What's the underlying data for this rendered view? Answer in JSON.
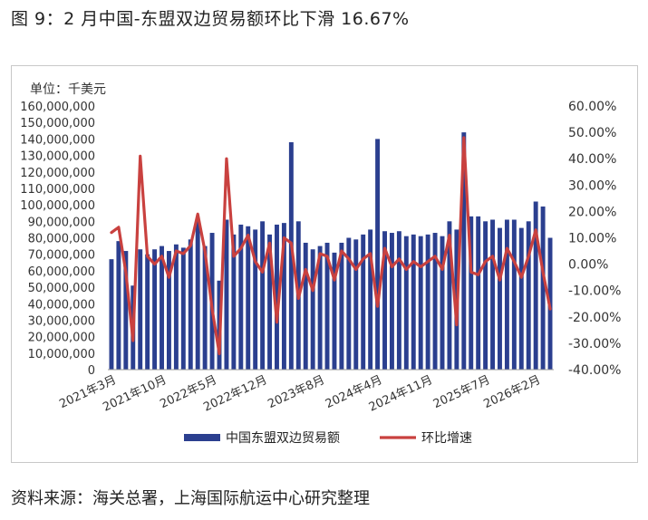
{
  "figure_title": "图 9：2 月中国-东盟双边贸易额环比下滑 16.67%",
  "unit_label": "单位：千美元",
  "source": "资料来源：海关总署，上海国际航运中心研究整理",
  "chart_data": {
    "type": "bar+line",
    "y_left_ticks": [
      "160,000,000",
      "150,000,000",
      "140,000,000",
      "130,000,000",
      "120,000,000",
      "110,000,000",
      "100,000,000",
      "90,000,000",
      "80,000,000",
      "70,000,000",
      "60,000,000",
      "50,000,000",
      "40,000,000",
      "30,000,000",
      "20,000,000",
      "10,000,000",
      "0"
    ],
    "y_right_ticks": [
      "60.00%",
      "50.00%",
      "40.00%",
      "30.00%",
      "20.00%",
      "10.00%",
      "0.00%",
      "-10.00%",
      "-20.00%",
      "-30.00%",
      "-40.00%"
    ],
    "ylim_left": [
      0,
      160000000
    ],
    "ylim_right": [
      -40,
      60
    ],
    "x_tick_labels": [
      "2021年3月",
      "2021年10月",
      "2022年5月",
      "2022年12月",
      "2023年8月",
      "2024年4月",
      "2024年11月",
      "2025年7月",
      "2026年2月"
    ],
    "x_tick_index": [
      0,
      7,
      14,
      21,
      29,
      37,
      44,
      52,
      59
    ],
    "categories_start": "2021年3月",
    "categories_end": "2026年2月",
    "colors": {
      "bars": "#2b3f8f",
      "line": "#c9413f"
    },
    "series": [
      {
        "name": "中国东盟双边贸易额",
        "kind": "bar",
        "values": [
          67000000,
          78000000,
          72000000,
          51000000,
          73000000,
          70000000,
          73000000,
          75000000,
          72000000,
          76000000,
          74000000,
          79000000,
          90000000,
          75000000,
          83000000,
          54000000,
          91000000,
          82000000,
          88000000,
          87000000,
          85000000,
          90000000,
          82000000,
          88000000,
          89000000,
          138000000,
          90000000,
          77000000,
          73000000,
          75000000,
          77000000,
          71000000,
          77000000,
          80000000,
          79000000,
          82000000,
          85000000,
          140000000,
          84000000,
          83000000,
          84000000,
          81000000,
          82000000,
          81000000,
          82000000,
          83000000,
          81000000,
          90000000,
          85000000,
          144000000,
          93000000,
          93000000,
          90000000,
          91000000,
          86000000,
          91000000,
          91000000,
          86000000,
          90000000,
          102000000,
          99000000,
          80000000
        ]
      },
      {
        "name": "环比增速",
        "kind": "line",
        "values": [
          12,
          14,
          -3,
          -29,
          41,
          3,
          0,
          3,
          -5,
          5,
          4,
          7,
          19,
          5,
          -17,
          -34,
          40,
          3,
          6,
          11,
          1,
          -3,
          8,
          -22,
          10,
          8,
          -13,
          -2,
          -10,
          4,
          3,
          -6,
          5,
          2,
          -2,
          2,
          4,
          -16,
          6,
          -1,
          2,
          -2,
          1,
          -1,
          1,
          3,
          -2,
          11,
          -23,
          48,
          -3,
          -4,
          1,
          3,
          -6,
          6,
          1,
          -5,
          3,
          13,
          -3,
          -17
        ]
      }
    ],
    "legend": {
      "placement": "bottom",
      "items": [
        "中国东盟双边贸易额",
        "环比增速"
      ]
    },
    "grid": false
  }
}
